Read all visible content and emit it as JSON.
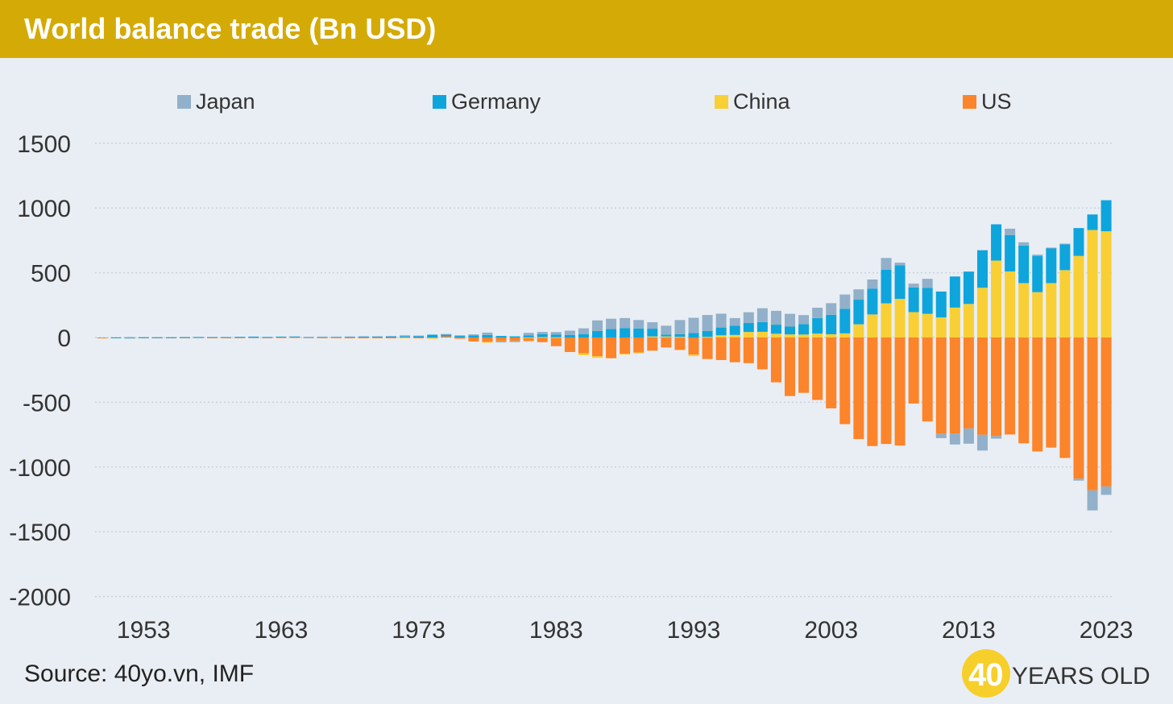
{
  "header": {
    "title": "World balance trade (Bn USD)"
  },
  "source": "Source: 40yo.vn, IMF",
  "brand": {
    "number": "40",
    "text": "YEARS OLD"
  },
  "colors": {
    "header_bg": "#d4aa06",
    "background": "#e9eef4",
    "japan": "#92b0c9",
    "germany": "#0ea5dc",
    "china": "#f8cf35",
    "us": "#fc842a"
  },
  "chart_data": {
    "type": "bar",
    "stacked": true,
    "title": "World balance trade (Bn USD)",
    "xlabel": "",
    "ylabel": "",
    "ylim": [
      -2000,
      1500
    ],
    "yticks": [
      1500,
      1000,
      500,
      0,
      -500,
      -1000,
      -1500,
      -2000
    ],
    "x_tick_labels": [
      "1953",
      "1963",
      "1973",
      "1983",
      "1993",
      "2003",
      "2013",
      "2023"
    ],
    "grid": true,
    "legend_position": "top",
    "x": [
      1950,
      1951,
      1952,
      1953,
      1954,
      1955,
      1956,
      1957,
      1958,
      1959,
      1960,
      1961,
      1962,
      1963,
      1964,
      1965,
      1966,
      1967,
      1968,
      1969,
      1970,
      1971,
      1972,
      1973,
      1974,
      1975,
      1976,
      1977,
      1978,
      1979,
      1980,
      1981,
      1982,
      1983,
      1984,
      1985,
      1986,
      1987,
      1988,
      1989,
      1990,
      1991,
      1992,
      1993,
      1994,
      1995,
      1996,
      1997,
      1998,
      1999,
      2000,
      2001,
      2002,
      2003,
      2004,
      2005,
      2006,
      2007,
      2008,
      2009,
      2010,
      2011,
      2012,
      2013,
      2014,
      2015,
      2016,
      2017,
      2018,
      2019,
      2020,
      2021,
      2022,
      2023
    ],
    "series": [
      {
        "name": "Japan",
        "values": [
          0,
          0,
          -1,
          0,
          0,
          0,
          0,
          -1,
          1,
          1,
          0,
          -1,
          0,
          0,
          0,
          2,
          2,
          1,
          2,
          3,
          4,
          6,
          8,
          3,
          0,
          2,
          3,
          8,
          18,
          -8,
          -10,
          20,
          18,
          20,
          33,
          46,
          82,
          80,
          77,
          65,
          50,
          68,
          110,
          117,
          124,
          107,
          60,
          82,
          107,
          107,
          99,
          70,
          80,
          90,
          110,
          80,
          70,
          90,
          20,
          30,
          70,
          -32,
          -85,
          -118,
          -122,
          -20,
          50,
          25,
          10,
          4,
          5,
          -15,
          -155,
          -65
        ]
      },
      {
        "name": "Germany",
        "values": [
          0,
          1,
          2,
          2,
          2,
          2,
          3,
          4,
          4,
          4,
          4,
          5,
          3,
          5,
          5,
          2,
          4,
          5,
          6,
          7,
          6,
          6,
          8,
          12,
          22,
          16,
          14,
          16,
          20,
          12,
          9,
          15,
          22,
          20,
          20,
          25,
          50,
          65,
          73,
          70,
          60,
          15,
          20,
          35,
          45,
          60,
          70,
          70,
          75,
          70,
          60,
          80,
          120,
          150,
          190,
          190,
          200,
          260,
          260,
          190,
          200,
          200,
          240,
          250,
          290,
          280,
          280,
          290,
          280,
          270,
          200,
          215,
          120,
          240
        ]
      },
      {
        "name": "China",
        "values": [
          0,
          0,
          0,
          0,
          0,
          0,
          0,
          0,
          0,
          0,
          0,
          0,
          0,
          0,
          0,
          0,
          0,
          0,
          0,
          0,
          0,
          0,
          1,
          0,
          -1,
          0,
          0,
          0,
          -1,
          -2,
          -1,
          1,
          3,
          2,
          0,
          -15,
          -12,
          0,
          -5,
          -7,
          8,
          8,
          5,
          -12,
          5,
          17,
          20,
          43,
          44,
          29,
          24,
          23,
          30,
          25,
          32,
          102,
          178,
          264,
          298,
          196,
          183,
          155,
          231,
          259,
          384,
          594,
          510,
          420,
          350,
          420,
          520,
          630,
          830,
          820
        ]
      },
      {
        "name": "US",
        "values": [
          -1,
          -2,
          -2,
          -1,
          -2,
          -1,
          -2,
          0,
          -2,
          -3,
          1,
          2,
          1,
          2,
          3,
          2,
          1,
          1,
          -2,
          -3,
          -2,
          -2,
          -6,
          -1,
          -3,
          9,
          -9,
          -31,
          -34,
          -28,
          -25,
          -28,
          -36,
          -67,
          -112,
          -122,
          -145,
          -160,
          -126,
          -116,
          -102,
          -77,
          -96,
          -132,
          -166,
          -174,
          -191,
          -198,
          -246,
          -346,
          -452,
          -427,
          -482,
          -547,
          -669,
          -784,
          -838,
          -822,
          -834,
          -510,
          -648,
          -745,
          -741,
          -702,
          -751,
          -761,
          -749,
          -817,
          -880,
          -850,
          -930,
          -1090,
          -1180,
          -1150
        ]
      }
    ]
  }
}
